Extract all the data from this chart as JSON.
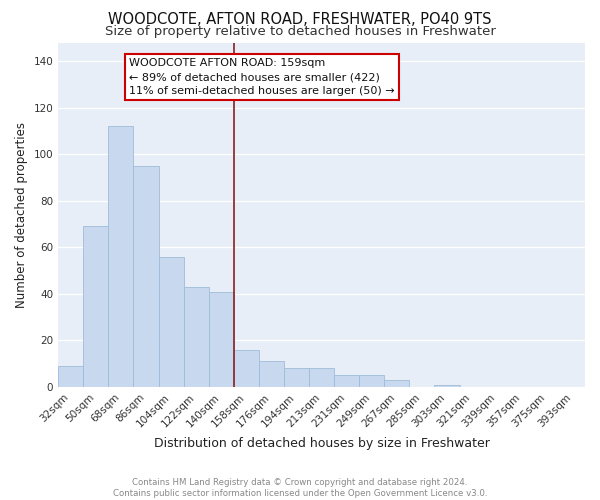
{
  "title": "WOODCOTE, AFTON ROAD, FRESHWATER, PO40 9TS",
  "subtitle": "Size of property relative to detached houses in Freshwater",
  "xlabel": "Distribution of detached houses by size in Freshwater",
  "ylabel": "Number of detached properties",
  "categories": [
    "32sqm",
    "50sqm",
    "68sqm",
    "86sqm",
    "104sqm",
    "122sqm",
    "140sqm",
    "158sqm",
    "176sqm",
    "194sqm",
    "213sqm",
    "231sqm",
    "249sqm",
    "267sqm",
    "285sqm",
    "303sqm",
    "321sqm",
    "339sqm",
    "357sqm",
    "375sqm",
    "393sqm"
  ],
  "values": [
    9,
    69,
    112,
    95,
    56,
    43,
    41,
    16,
    11,
    8,
    8,
    5,
    5,
    3,
    0,
    1,
    0,
    0,
    0,
    0,
    0
  ],
  "bar_color": "#c8d8ee",
  "bar_edge_color": "#a0bcd8",
  "bg_color": "#e8eef8",
  "vline_x_idx": 7,
  "vline_color": "#8b2020",
  "annotation_text": "WOODCOTE AFTON ROAD: 159sqm\n← 89% of detached houses are smaller (422)\n11% of semi-detached houses are larger (50) →",
  "annotation_box_color": "#cc0000",
  "footer_text": "Contains HM Land Registry data © Crown copyright and database right 2024.\nContains public sector information licensed under the Open Government Licence v3.0.",
  "title_fontsize": 10.5,
  "subtitle_fontsize": 9.5,
  "ylabel_fontsize": 8.5,
  "xlabel_fontsize": 9,
  "tick_fontsize": 7.5,
  "annot_fontsize": 8,
  "yticks": [
    0,
    20,
    40,
    60,
    80,
    100,
    120,
    140
  ],
  "ylim": [
    0,
    148
  ]
}
